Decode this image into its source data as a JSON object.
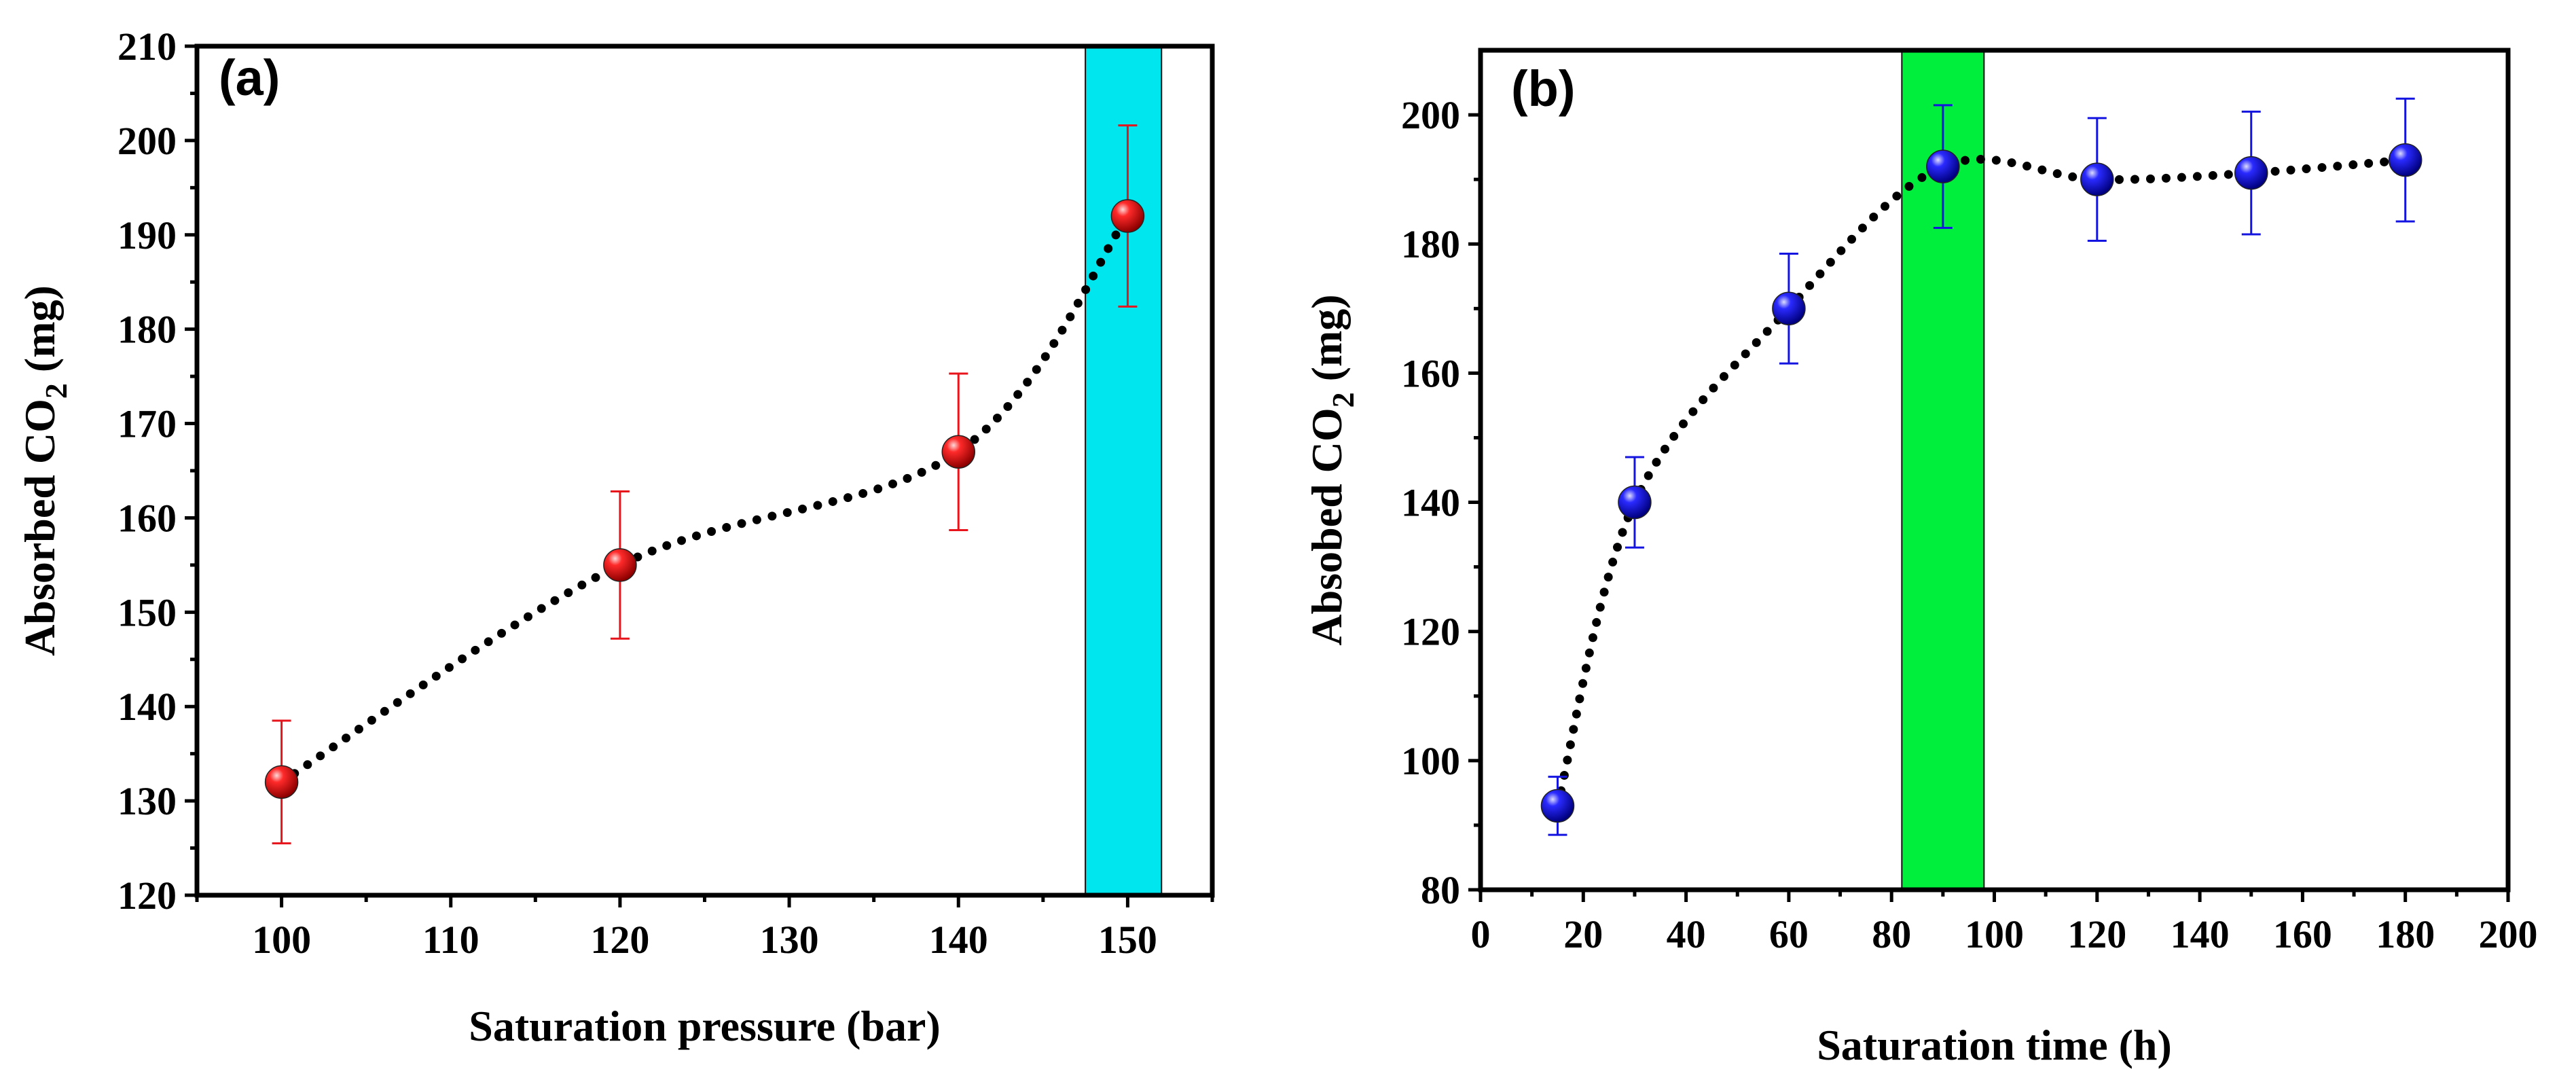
{
  "chart_data": [
    {
      "panel": "(a)",
      "type": "scatter",
      "xlabel": "Saturation pressure (bar)",
      "ylabel": "Absorbed CO",
      "ylabel_sub": "2",
      "ylabel_suffix": " (mg)",
      "xlim": [
        95,
        155
      ],
      "ylim": [
        120,
        210
      ],
      "xticks": [
        100,
        110,
        120,
        130,
        140,
        150
      ],
      "yticks": [
        120,
        130,
        140,
        150,
        160,
        170,
        180,
        190,
        200,
        210
      ],
      "x": [
        100,
        120,
        140,
        150
      ],
      "y": [
        132,
        155,
        167,
        192
      ],
      "error": [
        6.5,
        7.8,
        8.3,
        9.6
      ],
      "marker_color": "#e8141b",
      "errorbar_color": "#e8141b",
      "highlight": {
        "x_range": [
          147.5,
          152
        ],
        "color": "#00e6ee"
      },
      "curve": "dotted smooth fit"
    },
    {
      "panel": "(b)",
      "type": "scatter",
      "xlabel": "Saturation time (h)",
      "ylabel": "Absobed CO",
      "ylabel_sub": "2",
      "ylabel_suffix": " (mg)",
      "xlim": [
        0,
        200
      ],
      "ylim": [
        80,
        210
      ],
      "xticks": [
        0,
        20,
        40,
        60,
        80,
        100,
        120,
        140,
        160,
        180,
        200
      ],
      "yticks": [
        80,
        100,
        120,
        140,
        160,
        180,
        200
      ],
      "x": [
        15,
        30,
        60,
        90,
        120,
        150,
        180
      ],
      "y": [
        93,
        140,
        170,
        192,
        190,
        191,
        193
      ],
      "error": [
        4.5,
        7,
        8.5,
        9.5,
        9.5,
        9.5,
        9.5
      ],
      "marker_color": "#1414e0",
      "errorbar_color": "#1414e0",
      "highlight": {
        "x_range": [
          82,
          98
        ],
        "color": "#00ee3c"
      },
      "curve": "dotted smooth fit"
    }
  ]
}
